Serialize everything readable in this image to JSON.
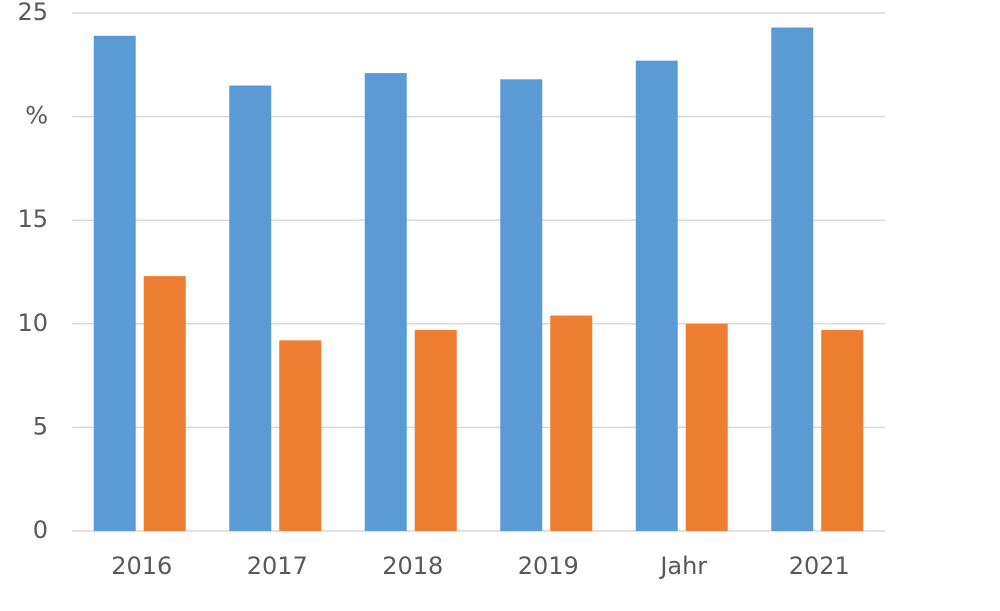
{
  "chart_data": {
    "type": "bar",
    "categories": [
      "2016",
      "2017",
      "2018",
      "2019",
      "Jahr",
      "2021"
    ],
    "series": [
      {
        "color": "#5b9bd5",
        "values": [
          23.9,
          21.5,
          22.1,
          21.8,
          22.7,
          24.3
        ]
      },
      {
        "color": "#ed7d31",
        "values": [
          12.3,
          9.2,
          9.7,
          10.4,
          10.0,
          9.7
        ]
      }
    ],
    "ylim": [
      0,
      25
    ],
    "yticks": [
      0,
      5,
      10,
      15,
      {
        "value": 20,
        "label": "%"
      },
      25
    ],
    "grid": true
  }
}
